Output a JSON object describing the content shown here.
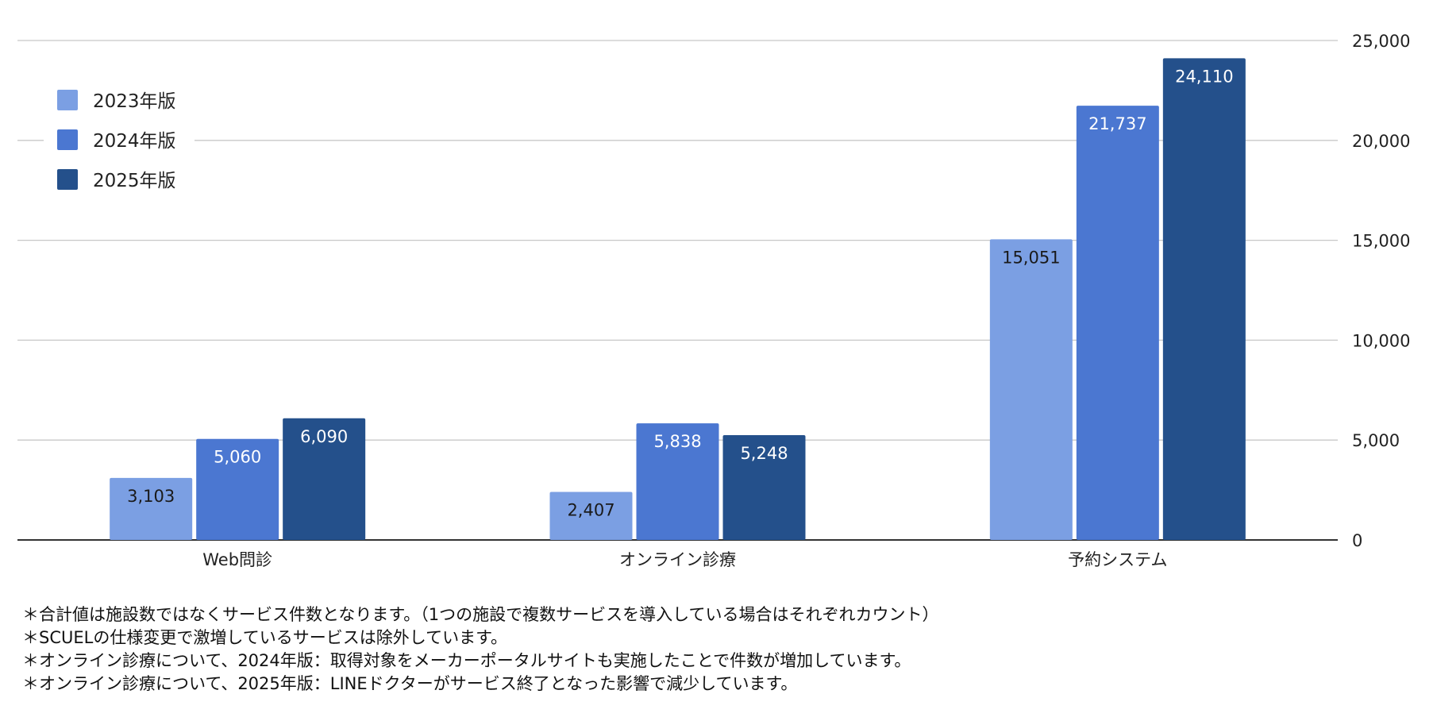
{
  "chart_data": {
    "type": "bar",
    "categories": [
      "Web問診",
      "オンライン診療",
      "予約システム"
    ],
    "series": [
      {
        "name": "2023年版",
        "values": [
          3103,
          2407,
          15051
        ],
        "color": "#7b9fe3",
        "label_color": "#1a1a1a"
      },
      {
        "name": "2024年版",
        "values": [
          5060,
          5838,
          21737
        ],
        "color": "#4b77d1",
        "label_color": "#ffffff"
      },
      {
        "name": "2025年版",
        "values": [
          6090,
          5248,
          24110
        ],
        "color": "#24508b",
        "label_color": "#ffffff"
      }
    ],
    "value_labels": [
      [
        "3,103",
        "2,407",
        "15,051"
      ],
      [
        "5,060",
        "5,838",
        "21,737"
      ],
      [
        "6,090",
        "5,248",
        "24,110"
      ]
    ],
    "y_ticks": [
      0,
      5000,
      10000,
      15000,
      20000,
      25000
    ],
    "y_tick_labels": [
      "0",
      "5,000",
      "10,000",
      "15,000",
      "20,000",
      "25,000"
    ],
    "ylim": [
      0,
      25000
    ],
    "y_axis_position": "right",
    "grid": true,
    "legend_position": "top-left",
    "title": "",
    "xlabel": "",
    "ylabel": ""
  },
  "notes": [
    "＊合計値は施設数ではなくサービス件数となります。（1つの施設で複数サービスを導入している場合はそれぞれカウント）",
    "＊SCUELの仕様変更で激増しているサービスは除外しています。",
    "＊オンライン診療について、2024年版：取得対象をメーカーポータルサイトも実施したことで件数が増加しています。",
    "＊オンライン診療について、2025年版：LINEドクターがサービス終了となった影響で減少しています。"
  ]
}
